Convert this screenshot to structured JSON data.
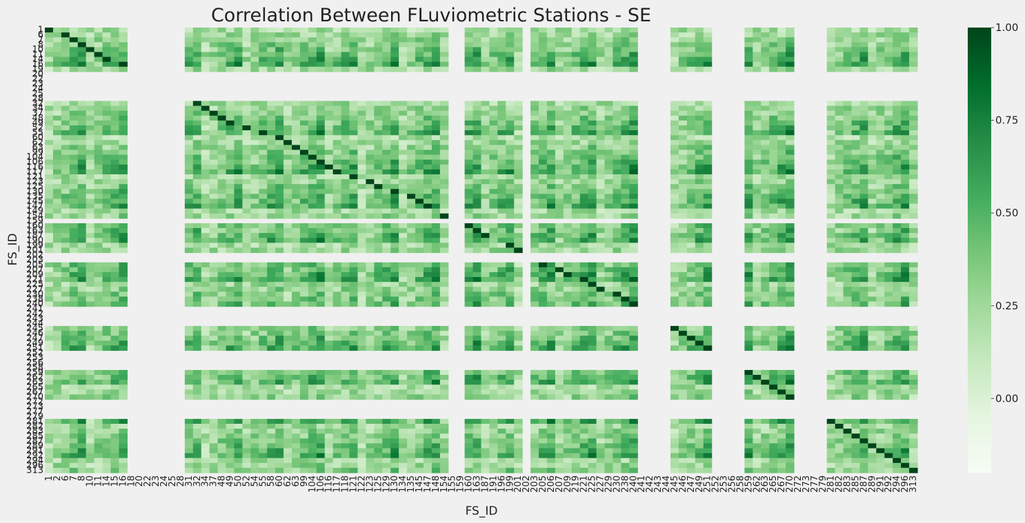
{
  "chart_data": {
    "type": "heatmap",
    "title": "Correlation Between FLuviometric Stations - SE",
    "xlabel": "FS_ID",
    "ylabel": "FS_ID",
    "colormap": "Greens",
    "color_low": "#f7fcf5",
    "color_high": "#00441b",
    "vmin": -0.2,
    "vmax": 1.0,
    "colorbar_ticks": [
      "1.00",
      "0.75",
      "0.50",
      "0.25",
      "0.00"
    ],
    "colorbar_tick_values": [
      1.0,
      0.75,
      0.5,
      0.25,
      0.0
    ],
    "x_tick_labels": [
      "1",
      "2",
      "6",
      "7",
      "8",
      "10",
      "11",
      "14",
      "15",
      "16",
      "18",
      "20",
      "22",
      "23",
      "24",
      "25",
      "28",
      "31",
      "32",
      "34",
      "37",
      "48",
      "49",
      "50",
      "52",
      "54",
      "55",
      "58",
      "60",
      "62",
      "63",
      "99",
      "104",
      "106",
      "116",
      "117",
      "118",
      "121",
      "122",
      "123",
      "125",
      "129",
      "130",
      "134",
      "135",
      "145",
      "147",
      "148",
      "154",
      "155",
      "159",
      "160",
      "163",
      "187",
      "191",
      "196",
      "199",
      "201",
      "202",
      "203",
      "205",
      "206",
      "207",
      "209",
      "219",
      "221",
      "225",
      "227",
      "229",
      "230",
      "238",
      "240",
      "241",
      "242",
      "243",
      "244",
      "245",
      "246",
      "247",
      "249",
      "251",
      "252",
      "253",
      "256",
      "258",
      "259",
      "262",
      "263",
      "265",
      "267",
      "270",
      "272",
      "273",
      "277",
      "279",
      "281",
      "282",
      "283",
      "285",
      "287",
      "289",
      "291",
      "292",
      "294",
      "296",
      "313"
    ],
    "y_tick_labels": [
      "1",
      "6",
      "7",
      "8",
      "10",
      "11",
      "14",
      "16",
      "19",
      "20",
      "22",
      "23",
      "24",
      "25",
      "28",
      "32",
      "34",
      "37",
      "48",
      "49",
      "52",
      "55",
      "60",
      "62",
      "63",
      "99",
      "104",
      "106",
      "116",
      "117",
      "121",
      "123",
      "125",
      "130",
      "135",
      "145",
      "147",
      "149",
      "154",
      "159",
      "160",
      "163",
      "187",
      "190",
      "199",
      "201",
      "202",
      "203",
      "205",
      "207",
      "209",
      "221",
      "225",
      "227",
      "230",
      "238",
      "240",
      "241",
      "242",
      "243",
      "244",
      "245",
      "246",
      "247",
      "249",
      "251",
      "252",
      "253",
      "256",
      "258",
      "259",
      "262",
      "263",
      "265",
      "267",
      "270",
      "272",
      "273",
      "277",
      "279",
      "281",
      "282",
      "283",
      "285",
      "287",
      "289",
      "291",
      "292",
      "294",
      "296",
      "313"
    ],
    "missing_rows": [
      "20",
      "22",
      "23",
      "24",
      "25",
      "28",
      "155",
      "159",
      "202",
      "203",
      "241",
      "242",
      "243",
      "244",
      "252",
      "253",
      "256",
      "258",
      "272",
      "273",
      "277",
      "279"
    ],
    "missing_cols": [
      "18",
      "20",
      "22",
      "23",
      "24",
      "25",
      "28",
      "155",
      "159",
      "202",
      "241",
      "242",
      "243",
      "244",
      "252",
      "253",
      "256",
      "258",
      "272",
      "273",
      "277",
      "279"
    ],
    "grid": false
  }
}
